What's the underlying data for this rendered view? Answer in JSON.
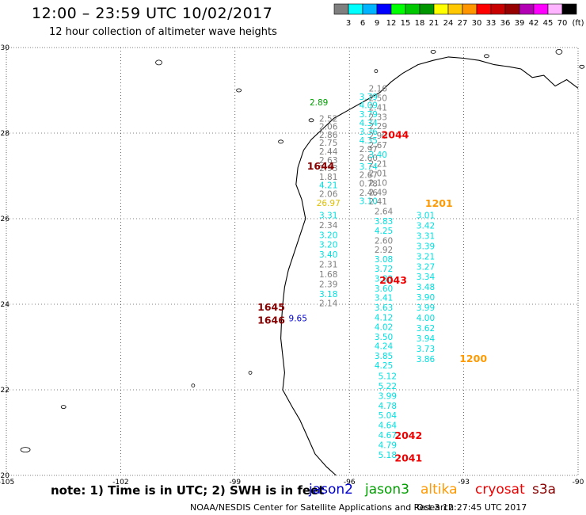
{
  "title": "12:00 – 23:59 UTC 10/02/2017",
  "subtitle": "12 hour collection of altimeter wave heights",
  "colorbar": {
    "ticks": [
      "3",
      "6",
      "9",
      "12",
      "15",
      "18",
      "21",
      "24",
      "27",
      "30",
      "33",
      "36",
      "39",
      "42",
      "45",
      "70"
    ],
    "unit": "(ft)",
    "colors": [
      "#7f7f7f",
      "#00ffff",
      "#00b4ff",
      "#0000ff",
      "#00ff00",
      "#00c800",
      "#009600",
      "#ffff00",
      "#ffc800",
      "#ff9600",
      "#ff0000",
      "#c80000",
      "#960000",
      "#b400b4",
      "#ff00ff",
      "#ffb4ff",
      "#000000"
    ]
  },
  "map": {
    "lon_labels": [
      "-105",
      "-102",
      "-99",
      "-96",
      "-93",
      "-90"
    ],
    "lat_labels": [
      "30",
      "28",
      "26",
      "24",
      "22",
      "20"
    ],
    "lon_range": [
      -105,
      -90
    ],
    "lat_range": [
      20,
      30
    ],
    "grid": "dotted"
  },
  "satellites": [
    {
      "name": "jason2",
      "color": "#0000cc"
    },
    {
      "name": "jason3",
      "color": "#00a000"
    },
    {
      "name": "altika",
      "color": "#ff9900"
    },
    {
      "name": "cryosat",
      "color": "#ee0000"
    },
    {
      "name": "s3a",
      "color": "#880000"
    }
  ],
  "note": "note: 1) Time is in UTC; 2) SWH is in feet",
  "footer": {
    "credit": "NOAA/NESDIS Center for Satellite Applications and Research",
    "generated": "Oct  3 12:27:45 UTC 2017"
  },
  "tracks": [
    {
      "time": "1644",
      "sat": "s3a",
      "lon": -96.55,
      "values": [
        [
          "2.52",
          28.27
        ],
        [
          "2.06",
          28.08
        ],
        [
          "2.86",
          27.89
        ],
        [
          "2.75",
          27.7
        ],
        [
          "2.44",
          27.5
        ],
        [
          "2.63",
          27.3
        ],
        [
          "2.93",
          27.11
        ],
        [
          "1.81",
          26.91
        ],
        [
          "4.21",
          26.71
        ],
        [
          "2.06",
          26.51
        ],
        [
          "26.97",
          26.3
        ],
        [
          "3.31",
          26.01
        ],
        [
          "2.34",
          25.78
        ],
        [
          "3.20",
          25.55
        ],
        [
          "3.20",
          25.32
        ],
        [
          "3.40",
          25.09
        ],
        [
          "2.31",
          24.86
        ],
        [
          "1.68",
          24.63
        ],
        [
          "2.39",
          24.4
        ],
        [
          "3.18",
          24.17
        ],
        [
          "2.14",
          23.95
        ]
      ]
    },
    {
      "time": "1645",
      "sat": "s3a",
      "lon": -97.35,
      "values": [
        [
          "9.65",
          23.6
        ]
      ]
    },
    {
      "time": "2044",
      "sat": "cryosat",
      "lon": -95.5,
      "values": [
        [
          "3.79",
          28.78
        ],
        [
          "4.09",
          28.58
        ],
        [
          "3.79",
          28.37
        ],
        [
          "4.34",
          28.17
        ],
        [
          "3.36",
          27.96
        ],
        [
          "4.35",
          27.76
        ],
        [
          "2.97",
          27.56
        ],
        [
          "2.60",
          27.35
        ],
        [
          "3.74",
          27.15
        ],
        [
          "2.67",
          26.95
        ],
        [
          "0.78",
          26.75
        ],
        [
          "2.46",
          26.54
        ],
        [
          "3.10",
          26.34
        ]
      ]
    },
    {
      "time": "2043",
      "sat": "cryosat",
      "lon": -95.1,
      "values": [
        [
          "2.64",
          26.1
        ],
        [
          "3.83",
          25.87
        ],
        [
          "4.25",
          25.65
        ],
        [
          "2.60",
          25.42
        ],
        [
          "2.92",
          25.2
        ],
        [
          "3.08",
          24.98
        ],
        [
          "3.72",
          24.76
        ],
        [
          "3.83",
          24.53
        ],
        [
          "3.60",
          24.3
        ],
        [
          "3.41",
          24.08
        ],
        [
          "3.63",
          23.85
        ],
        [
          "4.12",
          23.62
        ],
        [
          "4.02",
          23.4
        ],
        [
          "3.50",
          23.17
        ],
        [
          "4.24",
          22.95
        ],
        [
          "3.85",
          22.72
        ],
        [
          "4.25",
          22.5
        ]
      ]
    },
    {
      "time": "2042",
      "sat": "cryosat",
      "lon": -95.0,
      "values": [
        [
          "5.12",
          22.25
        ],
        [
          "5.22",
          22.02
        ],
        [
          "3.99",
          21.79
        ],
        [
          "4.78",
          21.56
        ],
        [
          "5.04",
          21.33
        ],
        [
          "4.64",
          21.1
        ],
        [
          "4.67",
          20.87
        ],
        [
          "4.79",
          20.64
        ],
        [
          "5.18",
          20.41
        ]
      ]
    },
    {
      "time": "1201",
      "sat": "altika",
      "lon": -95.25,
      "values": [
        [
          "2.16",
          28.97
        ],
        [
          "2.50",
          28.75
        ],
        [
          "2.41",
          28.53
        ],
        [
          "2.33",
          28.31
        ],
        [
          "2.29",
          28.09
        ],
        [
          "2.90",
          27.87
        ],
        [
          "2.67",
          27.65
        ],
        [
          "3.40",
          27.43
        ],
        [
          "2.21",
          27.21
        ],
        [
          "2.01",
          26.99
        ],
        [
          "2.10",
          26.77
        ],
        [
          "2.49",
          26.55
        ],
        [
          "2.41",
          26.33
        ]
      ]
    },
    {
      "time": "1200",
      "sat": "altika",
      "lon": -94.0,
      "values": [
        [
          "3.01",
          26.01
        ],
        [
          "3.42",
          25.77
        ],
        [
          "3.31",
          25.53
        ],
        [
          "3.39",
          25.29
        ],
        [
          "3.21",
          25.05
        ],
        [
          "3.27",
          24.81
        ],
        [
          "3.34",
          24.57
        ],
        [
          "3.48",
          24.33
        ],
        [
          "3.90",
          24.09
        ],
        [
          "3.99",
          23.85
        ],
        [
          "4.00",
          23.61
        ],
        [
          "3.62",
          23.37
        ],
        [
          "3.94",
          23.13
        ],
        [
          "3.73",
          22.89
        ],
        [
          "3.86",
          22.65
        ]
      ]
    }
  ],
  "time_labels": [
    {
      "text": "2044",
      "sat": "cryosat",
      "lon": -94.8,
      "lat": 27.88
    },
    {
      "text": "1644",
      "sat": "s3a",
      "lon": -96.75,
      "lat": 27.15
    },
    {
      "text": "1201",
      "sat": "altika",
      "lon": -93.65,
      "lat": 26.28
    },
    {
      "text": "2043",
      "sat": "cryosat",
      "lon": -94.85,
      "lat": 24.48
    },
    {
      "text": "1645",
      "sat": "s3a",
      "lon": -98.05,
      "lat": 23.85
    },
    {
      "text": "1646",
      "sat": "s3a",
      "lon": -98.05,
      "lat": 23.55
    },
    {
      "text": "1200",
      "sat": "altika",
      "lon": -92.75,
      "lat": 22.65
    },
    {
      "text": "2042",
      "sat": "cryosat",
      "lon": -94.45,
      "lat": 20.85
    },
    {
      "text": "2041",
      "sat": "cryosat",
      "lon": -94.45,
      "lat": 20.32
    }
  ],
  "jason3_fragment": {
    "text": "2.89",
    "lon": -96.8,
    "lat": 28.65
  }
}
